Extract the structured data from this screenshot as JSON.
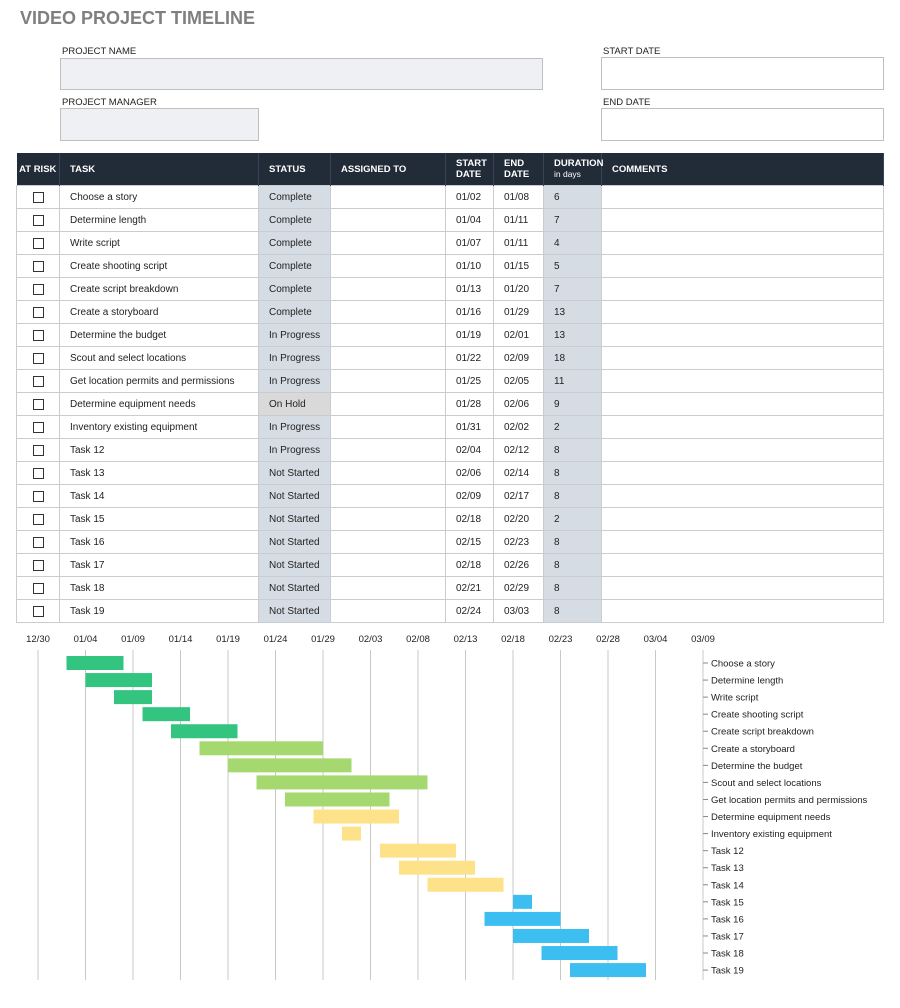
{
  "header": {
    "title": "VIDEO PROJECT TIMELINE"
  },
  "fields": {
    "project_name": "PROJECT NAME",
    "start_date": "START DATE",
    "project_manager": "PROJECT MANAGER",
    "end_date": "END DATE"
  },
  "table": {
    "columns": [
      "AT RISK",
      "TASK",
      "STATUS",
      "ASSIGNED TO",
      "START DATE",
      "END DATE",
      "DURATION",
      "COMMENTS"
    ],
    "duration_unit": "in days",
    "rows": [
      [
        "Choose a story",
        "Complete",
        "01/02",
        "01/08",
        6
      ],
      [
        "Determine length",
        "Complete",
        "01/04",
        "01/11",
        7
      ],
      [
        "Write script",
        "Complete",
        "01/07",
        "01/11",
        4
      ],
      [
        "Create shooting script",
        "Complete",
        "01/10",
        "01/15",
        5
      ],
      [
        "Create script breakdown",
        "Complete",
        "01/13",
        "01/20",
        7
      ],
      [
        "Create a storyboard",
        "Complete",
        "01/16",
        "01/29",
        13
      ],
      [
        "Determine the budget",
        "In Progress",
        "01/19",
        "02/01",
        13
      ],
      [
        "Scout and select locations",
        "In Progress",
        "01/22",
        "02/09",
        18
      ],
      [
        "Get location permits and permissions",
        "In Progress",
        "01/25",
        "02/05",
        11
      ],
      [
        "Determine equipment needs",
        "On Hold",
        "01/28",
        "02/06",
        9
      ],
      [
        "Inventory existing equipment",
        "In Progress",
        "01/31",
        "02/02",
        2
      ],
      [
        "Task 12",
        "In Progress",
        "02/04",
        "02/12",
        8
      ],
      [
        "Task 13",
        "Not Started",
        "02/06",
        "02/14",
        8
      ],
      [
        "Task 14",
        "Not Started",
        "02/09",
        "02/17",
        8
      ],
      [
        "Task 15",
        "Not Started",
        "02/18",
        "02/20",
        2
      ],
      [
        "Task 16",
        "Not Started",
        "02/15",
        "02/23",
        8
      ],
      [
        "Task 17",
        "Not Started",
        "02/18",
        "02/26",
        8
      ],
      [
        "Task 18",
        "Not Started",
        "02/21",
        "02/29",
        8
      ],
      [
        "Task 19",
        "Not Started",
        "02/24",
        "03/03",
        8
      ]
    ]
  },
  "gantt": {
    "xticks": [
      "12/30",
      "01/04",
      "01/09",
      "01/14",
      "01/19",
      "01/24",
      "01/29",
      "02/03",
      "02/08",
      "02/13",
      "02/18",
      "02/23",
      "02/28",
      "03/04",
      "03/09"
    ],
    "bar_colors": [
      "#33c47f",
      "#33c47f",
      "#33c47f",
      "#33c47f",
      "#33c47f",
      "#a5d86e",
      "#a5d86e",
      "#a5d86e",
      "#a5d86e",
      "#fde28a",
      "#fde28a",
      "#fde28a",
      "#fde28a",
      "#fde28a",
      "#3cbff0",
      "#3cbff0",
      "#3cbff0",
      "#3cbff0",
      "#3cbff0"
    ]
  }
}
